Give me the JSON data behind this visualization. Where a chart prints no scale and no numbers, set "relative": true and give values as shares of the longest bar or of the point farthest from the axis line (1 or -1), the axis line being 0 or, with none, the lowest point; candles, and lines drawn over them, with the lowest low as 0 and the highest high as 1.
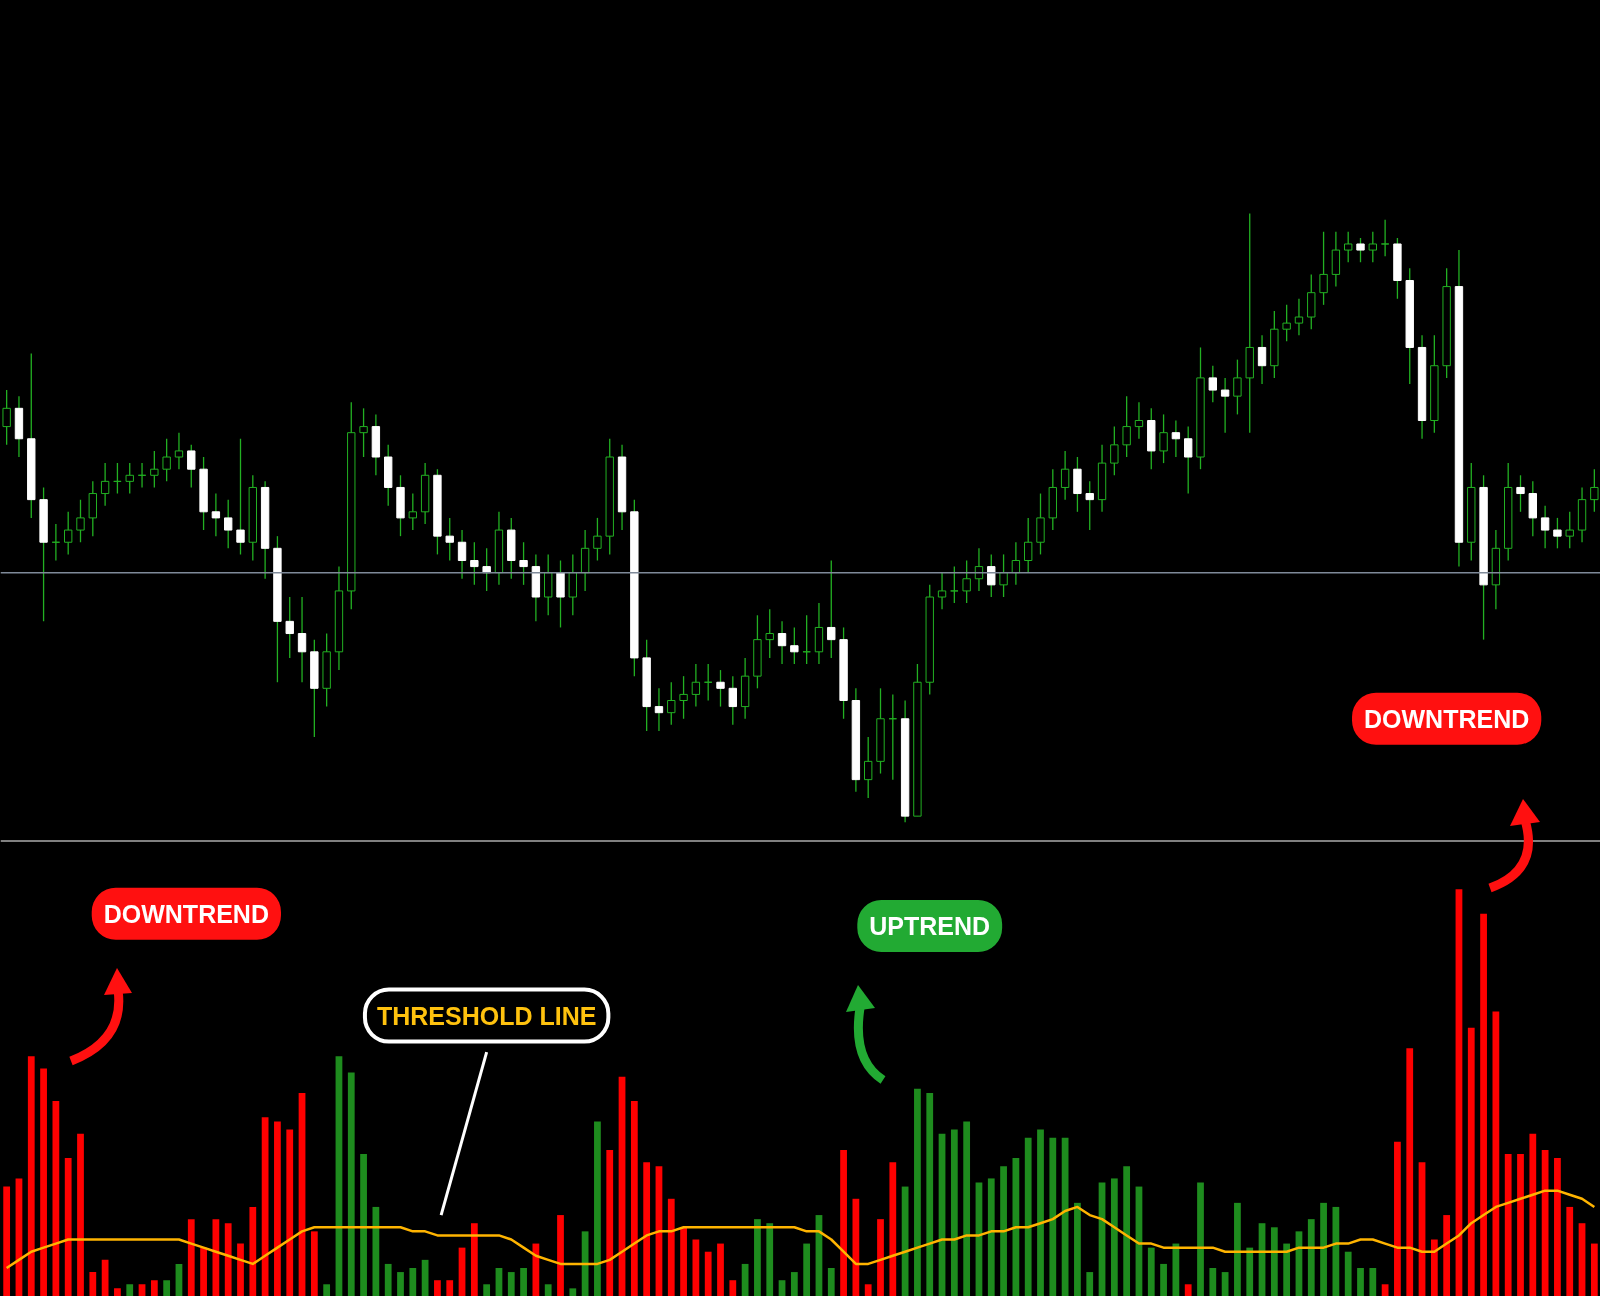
{
  "chart_data": [
    {
      "type": "candlestick",
      "relative": true,
      "categories": [
        null,
        null,
        null,
        null,
        null,
        null,
        null,
        null,
        null,
        null,
        null,
        null,
        null,
        null,
        null,
        null,
        null,
        null,
        null,
        null,
        null,
        null,
        null,
        null,
        null,
        null,
        null,
        null,
        null,
        null,
        null,
        null,
        null,
        null,
        null,
        null,
        null,
        null,
        null,
        null,
        null,
        null,
        null,
        null,
        null,
        null,
        null,
        null,
        null,
        null,
        null,
        null,
        null,
        null,
        null,
        null,
        null,
        null,
        null,
        null,
        null,
        null,
        null,
        null,
        null,
        null,
        null,
        null,
        null,
        null,
        null,
        null,
        null,
        null,
        null,
        null,
        null,
        null,
        null,
        null,
        null,
        null,
        null,
        null,
        null,
        null,
        null,
        null,
        null,
        null,
        null,
        null,
        null,
        null,
        null,
        null,
        null,
        null,
        null,
        null,
        null,
        null,
        null,
        null,
        null,
        null,
        null,
        null,
        null,
        null,
        null,
        null,
        null,
        null,
        null,
        null,
        null,
        null,
        null,
        null,
        null,
        null,
        null,
        null,
        null,
        null,
        null,
        null,
        null,
        null
      ],
      "ohlc": [
        [
          0.65,
          0.71,
          0.62,
          0.68
        ],
        [
          0.68,
          0.7,
          0.6,
          0.63
        ],
        [
          0.63,
          0.77,
          0.5,
          0.53
        ],
        [
          0.53,
          0.55,
          0.33,
          0.46
        ],
        [
          0.46,
          0.49,
          0.43,
          0.46
        ],
        [
          0.46,
          0.51,
          0.44,
          0.48
        ],
        [
          0.48,
          0.53,
          0.46,
          0.5
        ],
        [
          0.5,
          0.56,
          0.47,
          0.54
        ],
        [
          0.54,
          0.59,
          0.52,
          0.56
        ],
        [
          0.56,
          0.59,
          0.54,
          0.56
        ],
        [
          0.56,
          0.59,
          0.54,
          0.57
        ],
        [
          0.57,
          0.59,
          0.55,
          0.57
        ],
        [
          0.57,
          0.61,
          0.55,
          0.58
        ],
        [
          0.58,
          0.63,
          0.56,
          0.6
        ],
        [
          0.6,
          0.64,
          0.58,
          0.61
        ],
        [
          0.61,
          0.62,
          0.55,
          0.58
        ],
        [
          0.58,
          0.6,
          0.48,
          0.51
        ],
        [
          0.51,
          0.54,
          0.47,
          0.5
        ],
        [
          0.5,
          0.53,
          0.45,
          0.48
        ],
        [
          0.48,
          0.63,
          0.44,
          0.46
        ],
        [
          0.46,
          0.57,
          0.43,
          0.55
        ],
        [
          0.55,
          0.56,
          0.4,
          0.45
        ],
        [
          0.45,
          0.47,
          0.23,
          0.33
        ],
        [
          0.33,
          0.37,
          0.27,
          0.31
        ],
        [
          0.31,
          0.37,
          0.23,
          0.28
        ],
        [
          0.28,
          0.3,
          0.14,
          0.22
        ],
        [
          0.22,
          0.31,
          0.19,
          0.28
        ],
        [
          0.28,
          0.42,
          0.25,
          0.38
        ],
        [
          0.38,
          0.69,
          0.35,
          0.64
        ],
        [
          0.64,
          0.68,
          0.6,
          0.65
        ],
        [
          0.65,
          0.67,
          0.57,
          0.6
        ],
        [
          0.6,
          0.62,
          0.52,
          0.55
        ],
        [
          0.55,
          0.57,
          0.47,
          0.5
        ],
        [
          0.5,
          0.54,
          0.48,
          0.51
        ],
        [
          0.51,
          0.59,
          0.49,
          0.57
        ],
        [
          0.57,
          0.58,
          0.44,
          0.47
        ],
        [
          0.47,
          0.5,
          0.43,
          0.46
        ],
        [
          0.46,
          0.48,
          0.4,
          0.43
        ],
        [
          0.43,
          0.46,
          0.39,
          0.42
        ],
        [
          0.42,
          0.45,
          0.38,
          0.41
        ],
        [
          0.41,
          0.51,
          0.39,
          0.48
        ],
        [
          0.48,
          0.5,
          0.4,
          0.43
        ],
        [
          0.43,
          0.46,
          0.39,
          0.42
        ],
        [
          0.42,
          0.44,
          0.33,
          0.37
        ],
        [
          0.37,
          0.44,
          0.34,
          0.41
        ],
        [
          0.41,
          0.43,
          0.32,
          0.37
        ],
        [
          0.37,
          0.44,
          0.34,
          0.41
        ],
        [
          0.41,
          0.48,
          0.38,
          0.45
        ],
        [
          0.45,
          0.5,
          0.43,
          0.47
        ],
        [
          0.47,
          0.63,
          0.44,
          0.6
        ],
        [
          0.6,
          0.62,
          0.48,
          0.51
        ],
        [
          0.51,
          0.53,
          0.24,
          0.27
        ],
        [
          0.27,
          0.3,
          0.15,
          0.19
        ],
        [
          0.19,
          0.22,
          0.15,
          0.18
        ],
        [
          0.18,
          0.23,
          0.16,
          0.2
        ],
        [
          0.2,
          0.24,
          0.17,
          0.21
        ],
        [
          0.21,
          0.26,
          0.19,
          0.23
        ],
        [
          0.23,
          0.26,
          0.2,
          0.23
        ],
        [
          0.23,
          0.25,
          0.19,
          0.22
        ],
        [
          0.22,
          0.24,
          0.16,
          0.19
        ],
        [
          0.19,
          0.27,
          0.17,
          0.24
        ],
        [
          0.24,
          0.34,
          0.22,
          0.3
        ],
        [
          0.3,
          0.35,
          0.27,
          0.31
        ],
        [
          0.31,
          0.33,
          0.26,
          0.29
        ],
        [
          0.29,
          0.32,
          0.26,
          0.28
        ],
        [
          0.28,
          0.34,
          0.26,
          0.28
        ],
        [
          0.28,
          0.36,
          0.26,
          0.32
        ],
        [
          0.32,
          0.43,
          0.27,
          0.3
        ],
        [
          0.3,
          0.32,
          0.17,
          0.2
        ],
        [
          0.2,
          0.22,
          0.05,
          0.07
        ],
        [
          0.07,
          0.14,
          0.04,
          0.1
        ],
        [
          0.1,
          0.22,
          0.08,
          0.17
        ],
        [
          0.17,
          0.21,
          0.07,
          0.17
        ],
        [
          0.17,
          0.2,
          0.0,
          0.01
        ],
        [
          0.01,
          0.26,
          0.01,
          0.23
        ],
        [
          0.23,
          0.39,
          0.21,
          0.37
        ],
        [
          0.37,
          0.41,
          0.35,
          0.38
        ],
        [
          0.38,
          0.42,
          0.36,
          0.38
        ],
        [
          0.38,
          0.43,
          0.36,
          0.4
        ],
        [
          0.4,
          0.45,
          0.38,
          0.42
        ],
        [
          0.42,
          0.44,
          0.37,
          0.39
        ],
        [
          0.39,
          0.44,
          0.37,
          0.41
        ],
        [
          0.41,
          0.46,
          0.39,
          0.43
        ],
        [
          0.43,
          0.5,
          0.41,
          0.46
        ],
        [
          0.46,
          0.54,
          0.44,
          0.5
        ],
        [
          0.5,
          0.58,
          0.48,
          0.55
        ],
        [
          0.55,
          0.61,
          0.53,
          0.58
        ],
        [
          0.58,
          0.6,
          0.51,
          0.54
        ],
        [
          0.54,
          0.56,
          0.48,
          0.53
        ],
        [
          0.53,
          0.62,
          0.51,
          0.59
        ],
        [
          0.59,
          0.65,
          0.57,
          0.62
        ],
        [
          0.62,
          0.7,
          0.6,
          0.65
        ],
        [
          0.65,
          0.69,
          0.63,
          0.66
        ],
        [
          0.66,
          0.68,
          0.58,
          0.61
        ],
        [
          0.61,
          0.67,
          0.59,
          0.64
        ],
        [
          0.64,
          0.66,
          0.6,
          0.63
        ],
        [
          0.63,
          0.65,
          0.54,
          0.6
        ],
        [
          0.6,
          0.78,
          0.58,
          0.73
        ],
        [
          0.73,
          0.75,
          0.69,
          0.71
        ],
        [
          0.71,
          0.73,
          0.64,
          0.7
        ],
        [
          0.7,
          0.76,
          0.67,
          0.73
        ],
        [
          0.73,
          1.0,
          0.64,
          0.78
        ],
        [
          0.78,
          0.8,
          0.72,
          0.75
        ],
        [
          0.75,
          0.84,
          0.73,
          0.81
        ],
        [
          0.81,
          0.85,
          0.79,
          0.82
        ],
        [
          0.82,
          0.86,
          0.8,
          0.83
        ],
        [
          0.83,
          0.9,
          0.81,
          0.87
        ],
        [
          0.87,
          0.97,
          0.85,
          0.9
        ],
        [
          0.9,
          0.97,
          0.88,
          0.94
        ],
        [
          0.94,
          0.97,
          0.92,
          0.95
        ],
        [
          0.95,
          0.96,
          0.92,
          0.94
        ],
        [
          0.94,
          0.97,
          0.92,
          0.95
        ],
        [
          0.95,
          0.99,
          0.93,
          0.95
        ],
        [
          0.95,
          0.96,
          0.86,
          0.89
        ],
        [
          0.89,
          0.91,
          0.72,
          0.78
        ],
        [
          0.78,
          0.8,
          0.63,
          0.66
        ],
        [
          0.66,
          0.8,
          0.64,
          0.75
        ],
        [
          0.75,
          0.91,
          0.73,
          0.88
        ],
        [
          0.88,
          0.94,
          0.42,
          0.46
        ],
        [
          0.46,
          0.59,
          0.43,
          0.55
        ],
        [
          0.55,
          0.57,
          0.3,
          0.39
        ],
        [
          0.39,
          0.48,
          0.35,
          0.45
        ],
        [
          0.45,
          0.59,
          0.43,
          0.55
        ],
        [
          0.55,
          0.57,
          0.51,
          0.54
        ],
        [
          0.54,
          0.56,
          0.47,
          0.5
        ],
        [
          0.5,
          0.52,
          0.45,
          0.48
        ],
        [
          0.48,
          0.5,
          0.45,
          0.47
        ],
        [
          0.47,
          0.51,
          0.45,
          0.48
        ],
        [
          0.48,
          0.55,
          0.46,
          0.53
        ],
        [
          0.53,
          0.58,
          0.51,
          0.55
        ]
      ],
      "ref_lines": [
        {
          "axis": "y",
          "value": 0.41,
          "color": "#7f8a99"
        }
      ],
      "annotations": [
        "DOWNTREND"
      ]
    },
    {
      "type": "bar",
      "relative": true,
      "categories": [
        null,
        null,
        null,
        null,
        null,
        null,
        null,
        null,
        null,
        null,
        null,
        null,
        null,
        null,
        null,
        null,
        null,
        null,
        null,
        null,
        null,
        null,
        null,
        null,
        null,
        null,
        null,
        null,
        null,
        null,
        null,
        null,
        null,
        null,
        null,
        null,
        null,
        null,
        null,
        null,
        null,
        null,
        null,
        null,
        null,
        null,
        null,
        null,
        null,
        null,
        null,
        null,
        null,
        null,
        null,
        null,
        null,
        null,
        null,
        null,
        null,
        null,
        null,
        null,
        null,
        null,
        null,
        null,
        null,
        null,
        null,
        null,
        null,
        null,
        null,
        null,
        null,
        null,
        null,
        null,
        null,
        null,
        null,
        null,
        null,
        null,
        null,
        null,
        null,
        null,
        null,
        null,
        null,
        null,
        null,
        null,
        null,
        null,
        null,
        null,
        null,
        null,
        null,
        null,
        null,
        null,
        null,
        null,
        null,
        null,
        null,
        null,
        null,
        null,
        null,
        null,
        null,
        null,
        null,
        null,
        null,
        null,
        null,
        null,
        null,
        null,
        null,
        null,
        null,
        null
      ],
      "series": [
        {
          "type": "bar",
          "values": [
            0.27,
            0.29,
            0.59,
            0.56,
            0.48,
            0.34,
            0.4,
            0.06,
            0.09,
            0.02,
            0.03,
            0.03,
            0.04,
            0.04,
            0.08,
            0.19,
            0.12,
            0.19,
            0.18,
            0.13,
            0.22,
            0.44,
            0.43,
            0.41,
            0.5,
            0.16,
            0.03,
            0.59,
            0.55,
            0.35,
            0.22,
            0.08,
            0.06,
            0.07,
            0.09,
            0.04,
            0.04,
            0.12,
            0.18,
            0.03,
            0.07,
            0.06,
            0.07,
            0.13,
            0.03,
            0.2,
            0.02,
            0.16,
            0.43,
            0.36,
            0.54,
            0.48,
            0.33,
            0.32,
            0.24,
            0.17,
            0.14,
            0.11,
            0.13,
            0.04,
            0.08,
            0.19,
            0.18,
            0.04,
            0.06,
            0.13,
            0.2,
            0.07,
            0.36,
            0.24,
            0.03,
            0.19,
            0.33,
            0.27,
            0.51,
            0.5,
            0.4,
            0.41,
            0.43,
            0.28,
            0.29,
            0.32,
            0.34,
            0.39,
            0.41,
            0.39,
            0.39,
            0.23,
            0.06,
            0.28,
            0.29,
            0.32,
            0.27,
            0.12,
            0.08,
            0.13,
            0.03,
            0.28,
            0.07,
            0.06,
            0.23,
            0.12,
            0.18,
            0.17,
            0.13,
            0.16,
            0.19,
            0.23,
            0.22,
            0.11,
            0.07,
            0.07,
            0.03,
            0.38,
            0.61,
            0.33,
            0.14,
            0.2,
            1.0,
            0.66,
            0.94,
            0.7,
            0.35,
            0.35,
            0.4,
            0.36,
            0.34,
            0.22,
            0.18,
            0.13
          ],
          "colors": [
            "#ff0000",
            "#ff0000",
            "#ff0000",
            "#ff0000",
            "#ff0000",
            "#ff0000",
            "#ff0000",
            "#ff0000",
            "#ff0000",
            "#ff0000",
            "#1e8c1e",
            "#ff0000",
            "#ff0000",
            "#1e8c1e",
            "#1e8c1e",
            "#ff0000",
            "#ff0000",
            "#ff0000",
            "#ff0000",
            "#ff0000",
            "#ff0000",
            "#ff0000",
            "#ff0000",
            "#ff0000",
            "#ff0000",
            "#ff0000",
            "#1e8c1e",
            "#1e8c1e",
            "#1e8c1e",
            "#1e8c1e",
            "#1e8c1e",
            "#1e8c1e",
            "#1e8c1e",
            "#1e8c1e",
            "#1e8c1e",
            "#ff0000",
            "#ff0000",
            "#ff0000",
            "#ff0000",
            "#1e8c1e",
            "#1e8c1e",
            "#1e8c1e",
            "#1e8c1e",
            "#ff0000",
            "#1e8c1e",
            "#ff0000",
            "#1e8c1e",
            "#1e8c1e",
            "#1e8c1e",
            "#ff0000",
            "#ff0000",
            "#ff0000",
            "#ff0000",
            "#ff0000",
            "#ff0000",
            "#ff0000",
            "#ff0000",
            "#ff0000",
            "#ff0000",
            "#ff0000",
            "#1e8c1e",
            "#1e8c1e",
            "#1e8c1e",
            "#1e8c1e",
            "#1e8c1e",
            "#1e8c1e",
            "#1e8c1e",
            "#1e8c1e",
            "#ff0000",
            "#ff0000",
            "#ff0000",
            "#ff0000",
            "#ff0000",
            "#1e8c1e",
            "#1e8c1e",
            "#1e8c1e",
            "#1e8c1e",
            "#1e8c1e",
            "#1e8c1e",
            "#1e8c1e",
            "#1e8c1e",
            "#1e8c1e",
            "#1e8c1e",
            "#1e8c1e",
            "#1e8c1e",
            "#1e8c1e",
            "#1e8c1e",
            "#1e8c1e",
            "#1e8c1e",
            "#1e8c1e",
            "#1e8c1e",
            "#1e8c1e",
            "#1e8c1e",
            "#1e8c1e",
            "#1e8c1e",
            "#1e8c1e",
            "#ff0000",
            "#1e8c1e",
            "#1e8c1e",
            "#1e8c1e",
            "#1e8c1e",
            "#1e8c1e",
            "#1e8c1e",
            "#1e8c1e",
            "#1e8c1e",
            "#1e8c1e",
            "#1e8c1e",
            "#1e8c1e",
            "#1e8c1e",
            "#1e8c1e",
            "#1e8c1e",
            "#1e8c1e",
            "#ff0000",
            "#ff0000",
            "#ff0000",
            "#ff0000",
            "#ff0000",
            "#ff0000",
            "#ff0000",
            "#ff0000",
            "#ff0000",
            "#ff0000",
            "#ff0000",
            "#ff0000",
            "#ff0000",
            "#ff0000",
            "#ff0000",
            "#ff0000",
            "#ff0000",
            "#ff0000"
          ]
        },
        {
          "type": "line",
          "color": "#ffb400",
          "values": [
            0.07,
            0.09,
            0.11,
            0.12,
            0.13,
            0.14,
            0.14,
            0.14,
            0.14,
            0.14,
            0.14,
            0.14,
            0.14,
            0.14,
            0.14,
            0.13,
            0.12,
            0.11,
            0.1,
            0.09,
            0.08,
            0.1,
            0.12,
            0.14,
            0.16,
            0.17,
            0.17,
            0.17,
            0.17,
            0.17,
            0.17,
            0.17,
            0.17,
            0.16,
            0.16,
            0.15,
            0.15,
            0.15,
            0.15,
            0.15,
            0.15,
            0.14,
            0.12,
            0.1,
            0.09,
            0.08,
            0.08,
            0.08,
            0.08,
            0.09,
            0.11,
            0.13,
            0.15,
            0.16,
            0.16,
            0.17,
            0.17,
            0.17,
            0.17,
            0.17,
            0.17,
            0.17,
            0.17,
            0.17,
            0.17,
            0.16,
            0.16,
            0.14,
            0.11,
            0.08,
            0.08,
            0.09,
            0.1,
            0.11,
            0.12,
            0.13,
            0.14,
            0.14,
            0.15,
            0.15,
            0.16,
            0.16,
            0.17,
            0.17,
            0.18,
            0.19,
            0.21,
            0.22,
            0.2,
            0.19,
            0.17,
            0.15,
            0.13,
            0.13,
            0.12,
            0.12,
            0.12,
            0.12,
            0.12,
            0.11,
            0.11,
            0.11,
            0.11,
            0.11,
            0.11,
            0.12,
            0.12,
            0.12,
            0.13,
            0.13,
            0.14,
            0.14,
            0.13,
            0.12,
            0.12,
            0.11,
            0.11,
            0.13,
            0.15,
            0.18,
            0.2,
            0.22,
            0.23,
            0.24,
            0.25,
            0.26,
            0.26,
            0.25,
            0.24,
            0.22
          ]
        }
      ],
      "annotations": [
        "DOWNTREND",
        "UPTREND",
        "THRESHOLD LINE"
      ]
    }
  ]
}
